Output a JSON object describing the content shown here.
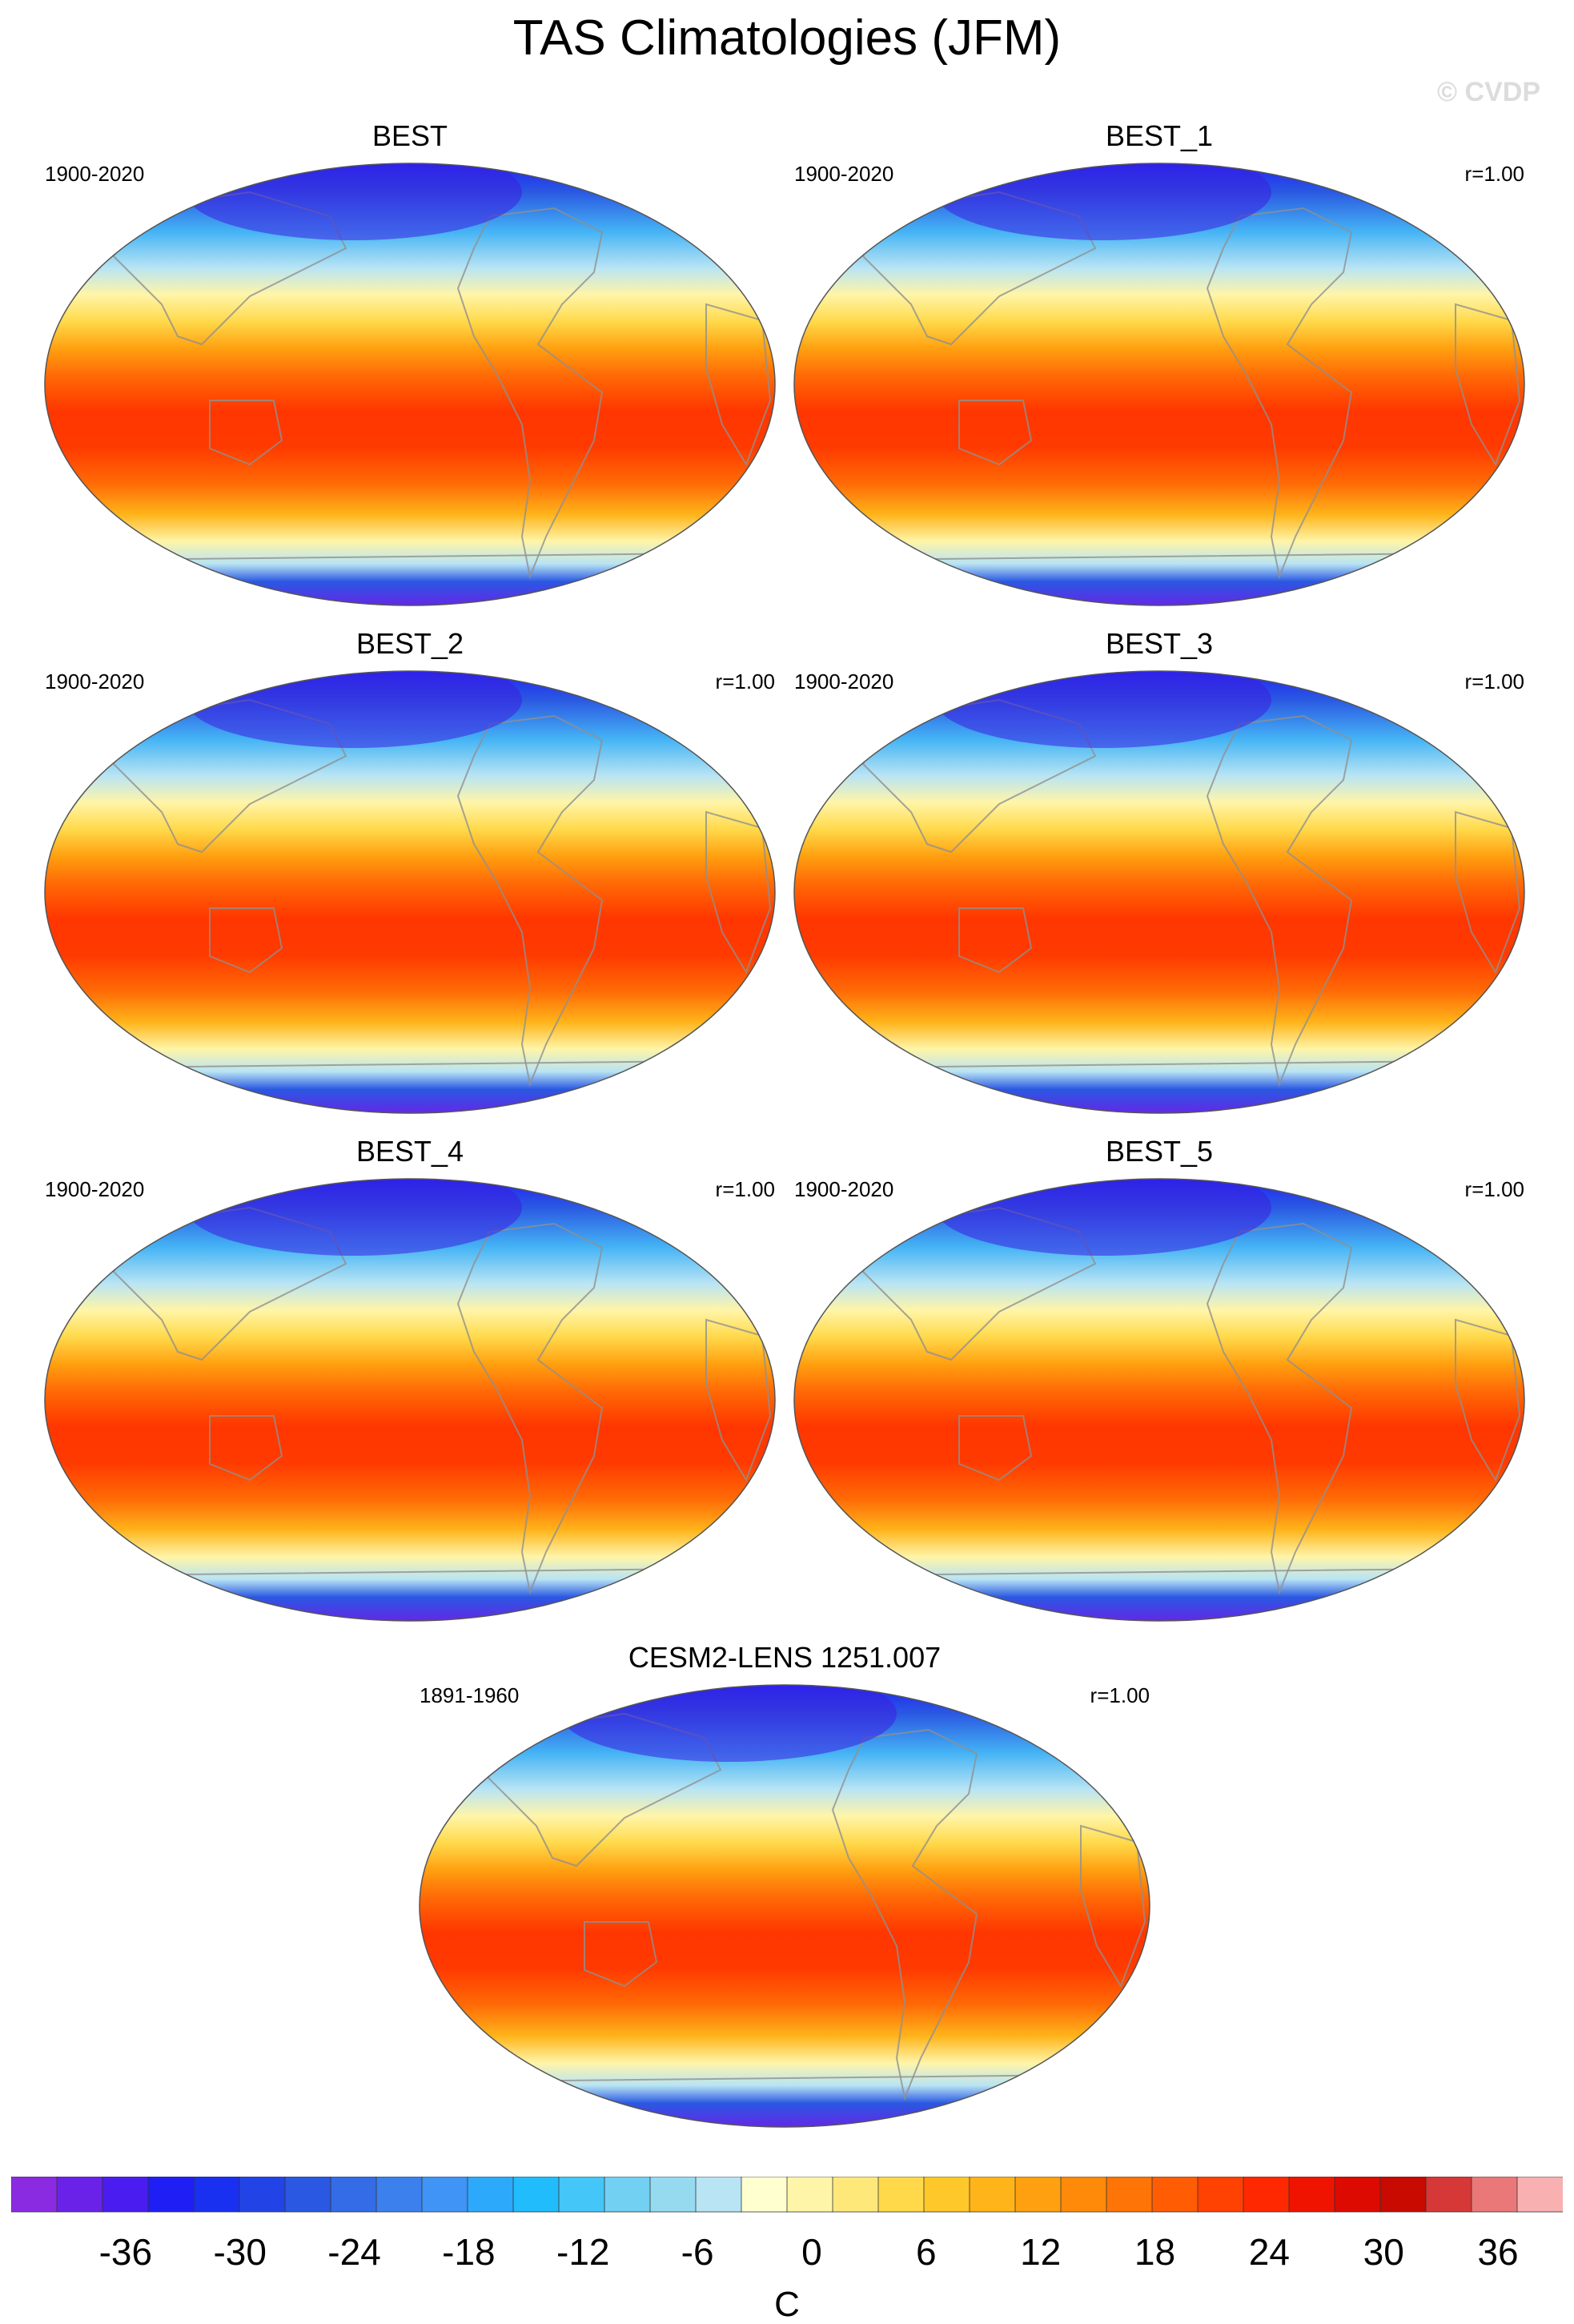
{
  "figure": {
    "title": "TAS Climatologies (JFM)",
    "watermark": "© CVDP"
  },
  "panels": [
    {
      "title": "BEST",
      "period": "1900-2020",
      "corr": ""
    },
    {
      "title": "BEST_1",
      "period": "1900-2020",
      "corr": "r=1.00"
    },
    {
      "title": "BEST_2",
      "period": "1900-2020",
      "corr": "r=1.00"
    },
    {
      "title": "BEST_3",
      "period": "1900-2020",
      "corr": "r=1.00"
    },
    {
      "title": "BEST_4",
      "period": "1900-2020",
      "corr": "r=1.00"
    },
    {
      "title": "BEST_5",
      "period": "1900-2020",
      "corr": "r=1.00"
    },
    {
      "title": "CESM2-LENS 1251.007",
      "period": "1891-1960",
      "corr": "r=1.00"
    }
  ],
  "colorbar": {
    "unit": "C",
    "tick_labels": [
      "-36",
      "-30",
      "-24",
      "-18",
      "-12",
      "-6",
      "0",
      "6",
      "12",
      "18",
      "24",
      "30",
      "36"
    ],
    "colors": [
      "#8a2be2",
      "#6a22e8",
      "#4b1cf0",
      "#1f1ff5",
      "#1a30f0",
      "#2244e6",
      "#2a58e2",
      "#336ce6",
      "#3c80ee",
      "#3f94f5",
      "#2da9fb",
      "#20bcfb",
      "#45c6f8",
      "#72d0f2",
      "#96daf0",
      "#b8e4f4",
      "#ffffd0",
      "#fff5a8",
      "#ffe87a",
      "#ffd94a",
      "#ffc82a",
      "#ffb41a",
      "#ffa010",
      "#ff8a0a",
      "#ff7406",
      "#ff5c04",
      "#ff4202",
      "#ff2800",
      "#f01400",
      "#dc0a00",
      "#c80a00",
      "#d63838",
      "#ea7878",
      "#f8b0b0"
    ],
    "legend_colors": {
      "cold": "#3a1fe0",
      "ocean_tropics": "#ff3a00",
      "coast": "#909090"
    }
  }
}
